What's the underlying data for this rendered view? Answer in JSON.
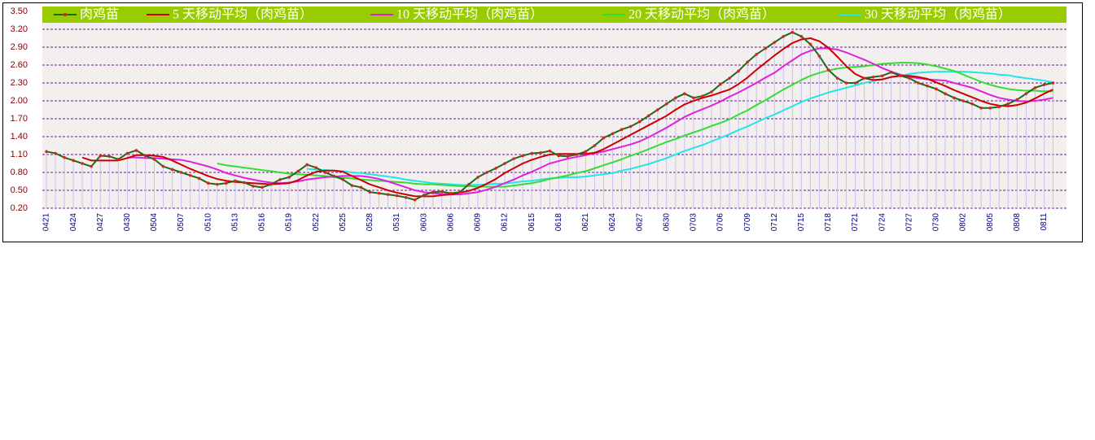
{
  "chart_data": {
    "type": "line",
    "categories": [
      "0421",
      null,
      null,
      "0424",
      null,
      null,
      "0427",
      null,
      null,
      "0430",
      null,
      null,
      "0504",
      null,
      null,
      "0507",
      null,
      null,
      "0510",
      null,
      null,
      "0513",
      null,
      null,
      "0516",
      null,
      null,
      "0519",
      null,
      null,
      "0522",
      null,
      null,
      "0525",
      null,
      null,
      "0528",
      null,
      null,
      "0531",
      null,
      null,
      "0603",
      null,
      null,
      "0606",
      null,
      null,
      "0609",
      null,
      null,
      "0612",
      null,
      null,
      "0615",
      null,
      null,
      "0618",
      null,
      null,
      "0621",
      null,
      null,
      "0624",
      null,
      null,
      "0627",
      null,
      null,
      "0630",
      null,
      null,
      "0703",
      null,
      null,
      "0706",
      null,
      null,
      "0709",
      null,
      null,
      "0712",
      null,
      null,
      "0715",
      null,
      null,
      "0718",
      null,
      null,
      "0721",
      null,
      null,
      "0724",
      null,
      null,
      "0727",
      null,
      null,
      "0730",
      null,
      null,
      "0802",
      null,
      null,
      "0805",
      null,
      null,
      "0808",
      null,
      null,
      "0811",
      null
    ],
    "series": [
      {
        "name": "肉鸡苗",
        "color": "#1a6b1a",
        "marker_color": "#e02020",
        "values": [
          1.15,
          1.12,
          1.05,
          1.0,
          0.95,
          0.9,
          1.08,
          1.07,
          1.02,
          1.12,
          1.17,
          1.08,
          1.02,
          0.9,
          0.85,
          0.8,
          0.75,
          0.7,
          0.62,
          0.6,
          0.62,
          0.66,
          0.63,
          0.57,
          0.55,
          0.6,
          0.68,
          0.72,
          0.82,
          0.93,
          0.88,
          0.8,
          0.74,
          0.68,
          0.58,
          0.55,
          0.47,
          0.45,
          0.43,
          0.41,
          0.38,
          0.34,
          0.42,
          0.47,
          0.48,
          0.45,
          0.47,
          0.6,
          0.72,
          0.8,
          0.87,
          0.95,
          1.03,
          1.08,
          1.12,
          1.13,
          1.16,
          1.08,
          1.07,
          1.1,
          1.15,
          1.25,
          1.38,
          1.45,
          1.52,
          1.57,
          1.65,
          1.75,
          1.85,
          1.95,
          2.05,
          2.12,
          2.05,
          2.08,
          2.15,
          2.28,
          2.38,
          2.5,
          2.65,
          2.78,
          2.88,
          2.98,
          3.08,
          3.15,
          3.08,
          2.95,
          2.75,
          2.52,
          2.38,
          2.3,
          2.3,
          2.38,
          2.4,
          2.42,
          2.48,
          2.42,
          2.38,
          2.3,
          2.25,
          2.2,
          2.12,
          2.05,
          2.0,
          1.95,
          1.88,
          1.88,
          1.9,
          1.95,
          2.02,
          2.12,
          2.22,
          2.27,
          2.3
        ]
      },
      {
        "name": "5 天移动平均（肉鸡苗）",
        "color": "#cc0000",
        "values": [
          null,
          null,
          null,
          null,
          1.05,
          1.0,
          1.0,
          1.0,
          1.0,
          1.04,
          1.09,
          1.09,
          1.08,
          1.06,
          1.0,
          0.93,
          0.86,
          0.8,
          0.74,
          0.69,
          0.66,
          0.64,
          0.63,
          0.62,
          0.61,
          0.6,
          0.61,
          0.62,
          0.67,
          0.75,
          0.81,
          0.83,
          0.83,
          0.81,
          0.74,
          0.67,
          0.6,
          0.55,
          0.5,
          0.46,
          0.43,
          0.4,
          0.4,
          0.4,
          0.42,
          0.43,
          0.46,
          0.49,
          0.54,
          0.61,
          0.69,
          0.79,
          0.87,
          0.95,
          1.01,
          1.06,
          1.1,
          1.11,
          1.11,
          1.11,
          1.11,
          1.13,
          1.19,
          1.27,
          1.35,
          1.43,
          1.51,
          1.59,
          1.67,
          1.75,
          1.85,
          1.94,
          2.0,
          2.05,
          2.09,
          2.14,
          2.19,
          2.28,
          2.39,
          2.52,
          2.64,
          2.76,
          2.87,
          2.97,
          3.03,
          3.05,
          3.0,
          2.89,
          2.74,
          2.58,
          2.45,
          2.38,
          2.35,
          2.36,
          2.4,
          2.42,
          2.42,
          2.4,
          2.37,
          2.31,
          2.25,
          2.18,
          2.12,
          2.06,
          2.0,
          1.95,
          1.92,
          1.91,
          1.93,
          1.97,
          2.04,
          2.12,
          2.19
        ]
      },
      {
        "name": "10 天移动平均（肉鸡苗）",
        "color": "#e020e0",
        "values": [
          null,
          null,
          null,
          null,
          null,
          null,
          null,
          null,
          null,
          1.05,
          1.05,
          1.04,
          1.04,
          1.03,
          1.02,
          1.01,
          0.98,
          0.94,
          0.9,
          0.85,
          0.79,
          0.75,
          0.71,
          0.68,
          0.65,
          0.63,
          0.62,
          0.63,
          0.65,
          0.68,
          0.7,
          0.72,
          0.73,
          0.74,
          0.74,
          0.74,
          0.72,
          0.69,
          0.65,
          0.6,
          0.55,
          0.5,
          0.47,
          0.45,
          0.44,
          0.43,
          0.43,
          0.45,
          0.47,
          0.51,
          0.56,
          0.62,
          0.68,
          0.75,
          0.81,
          0.88,
          0.95,
          0.99,
          1.03,
          1.06,
          1.09,
          1.12,
          1.15,
          1.19,
          1.23,
          1.27,
          1.32,
          1.39,
          1.47,
          1.55,
          1.64,
          1.73,
          1.8,
          1.86,
          1.92,
          1.99,
          2.07,
          2.14,
          2.22,
          2.3,
          2.39,
          2.47,
          2.58,
          2.68,
          2.78,
          2.84,
          2.88,
          2.88,
          2.86,
          2.81,
          2.75,
          2.69,
          2.62,
          2.55,
          2.49,
          2.44,
          2.4,
          2.38,
          2.36,
          2.35,
          2.34,
          2.3,
          2.26,
          2.22,
          2.16,
          2.1,
          2.05,
          2.02,
          2.0,
          1.99,
          2.0,
          2.02,
          2.05
        ]
      },
      {
        "name": "20 天移动平均（肉鸡苗）",
        "color": "#33dd33",
        "values": [
          null,
          null,
          null,
          null,
          null,
          null,
          null,
          null,
          null,
          null,
          null,
          null,
          null,
          null,
          null,
          null,
          null,
          null,
          null,
          0.95,
          0.92,
          0.9,
          0.88,
          0.86,
          0.84,
          0.82,
          0.8,
          0.78,
          0.77,
          0.76,
          0.75,
          0.74,
          0.72,
          0.71,
          0.7,
          0.68,
          0.67,
          0.66,
          0.65,
          0.64,
          0.63,
          0.61,
          0.6,
          0.6,
          0.59,
          0.58,
          0.57,
          0.57,
          0.56,
          0.56,
          0.56,
          0.56,
          0.58,
          0.6,
          0.62,
          0.65,
          0.69,
          0.72,
          0.75,
          0.79,
          0.82,
          0.87,
          0.92,
          0.97,
          1.02,
          1.08,
          1.13,
          1.19,
          1.25,
          1.31,
          1.36,
          1.42,
          1.47,
          1.52,
          1.58,
          1.63,
          1.69,
          1.77,
          1.84,
          1.93,
          2.01,
          2.1,
          2.19,
          2.27,
          2.35,
          2.42,
          2.47,
          2.51,
          2.54,
          2.56,
          2.57,
          2.58,
          2.6,
          2.62,
          2.63,
          2.64,
          2.64,
          2.63,
          2.61,
          2.58,
          2.54,
          2.5,
          2.44,
          2.38,
          2.32,
          2.27,
          2.23,
          2.2,
          2.18,
          2.17,
          2.17,
          2.16,
          2.16
        ]
      },
      {
        "name": "30 天移动平均（肉鸡苗）",
        "color": "#22e5e5",
        "values": [
          null,
          null,
          null,
          null,
          null,
          null,
          null,
          null,
          null,
          null,
          null,
          null,
          null,
          null,
          null,
          null,
          null,
          null,
          null,
          null,
          null,
          null,
          null,
          null,
          null,
          null,
          null,
          null,
          null,
          0.86,
          0.85,
          0.84,
          0.83,
          0.82,
          0.8,
          0.79,
          0.77,
          0.75,
          0.73,
          0.71,
          0.68,
          0.66,
          0.64,
          0.62,
          0.61,
          0.6,
          0.59,
          0.59,
          0.59,
          0.6,
          0.61,
          0.61,
          0.63,
          0.65,
          0.66,
          0.68,
          0.7,
          0.71,
          0.72,
          0.72,
          0.73,
          0.75,
          0.77,
          0.79,
          0.83,
          0.86,
          0.9,
          0.94,
          0.99,
          1.04,
          1.1,
          1.16,
          1.21,
          1.26,
          1.32,
          1.38,
          1.44,
          1.51,
          1.57,
          1.64,
          1.71,
          1.77,
          1.84,
          1.91,
          1.98,
          2.04,
          2.09,
          2.14,
          2.18,
          2.22,
          2.26,
          2.3,
          2.33,
          2.36,
          2.4,
          2.42,
          2.45,
          2.47,
          2.48,
          2.49,
          2.49,
          2.49,
          2.49,
          2.48,
          2.47,
          2.46,
          2.44,
          2.43,
          2.4,
          2.38,
          2.36,
          2.34,
          2.31
        ]
      }
    ],
    "ylim": [
      0.2,
      3.5
    ],
    "yticks": [
      {
        "value": 0.2,
        "label": "0.20"
      },
      {
        "value": 0.5,
        "label": "0.50"
      },
      {
        "value": 0.8,
        "label": "0.80"
      },
      {
        "value": 1.1,
        "label": "1.10"
      },
      {
        "value": 1.4,
        "label": "1.40"
      },
      {
        "value": 1.7,
        "label": "1.70"
      },
      {
        "value": 2.0,
        "label": "2.00"
      },
      {
        "value": 2.3,
        "label": "2.30"
      },
      {
        "value": 2.6,
        "label": "2.60"
      },
      {
        "value": 2.9,
        "label": "2.90"
      },
      {
        "value": 3.2,
        "label": "3.20"
      },
      {
        "value": 3.5,
        "label": "3.50"
      }
    ],
    "grid": true,
    "grid_color": "#6a1a9a",
    "drop_lines": true,
    "drop_line_color": "#c9c2f2",
    "legend": "top",
    "legend_color": "#99cc00",
    "background_color": "#f3efef"
  }
}
